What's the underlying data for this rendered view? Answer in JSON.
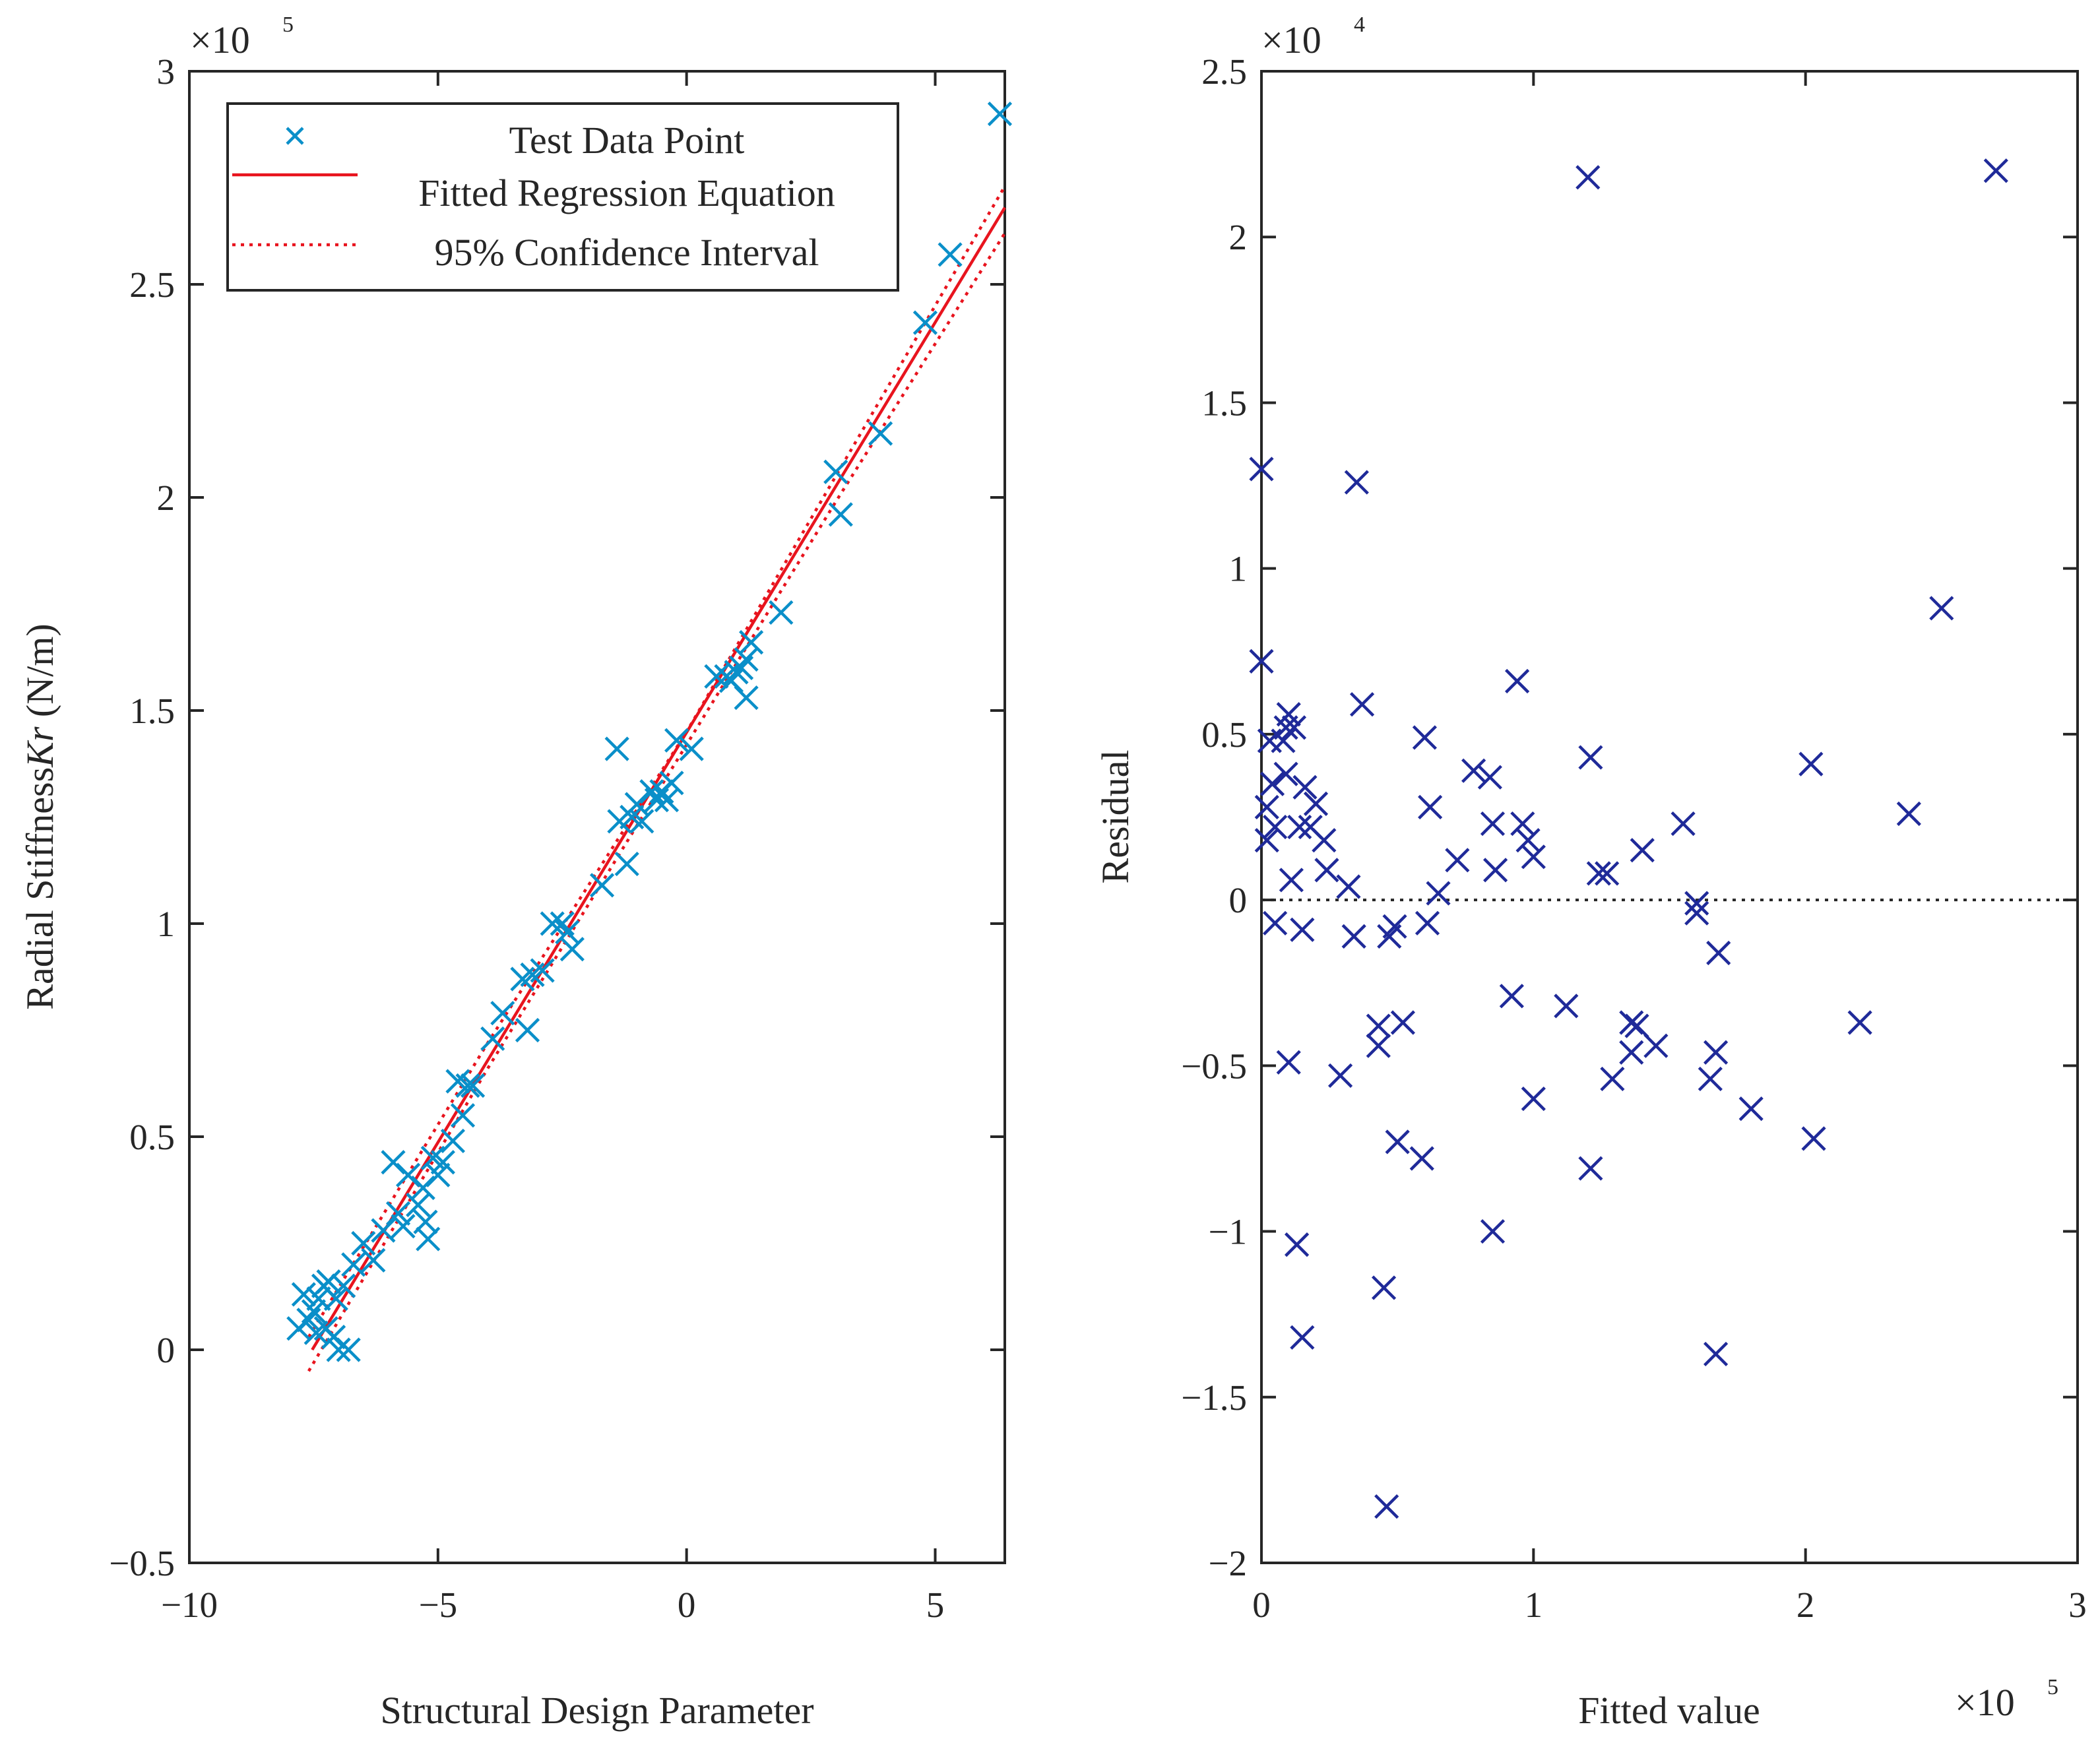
{
  "chart_data": [
    {
      "type": "scatter",
      "title": "",
      "xlabel": "Structural Design Parameter",
      "ylabel": "Radial Stiffness",
      "ylabel_italic": "Kr",
      "ylabel_unit": " (N/m)",
      "xlim": [
        -10,
        6.4
      ],
      "ylim": [
        -0.5,
        3
      ],
      "xticks": [
        -10,
        -5,
        0,
        5
      ],
      "xtick_labels": [
        "−10",
        "−5",
        "0",
        "5"
      ],
      "yticks": [
        -0.5,
        0,
        0.5,
        1,
        1.5,
        2,
        2.5,
        3
      ],
      "ytick_labels": [
        "−0.5",
        "0",
        "0.5",
        "1",
        "1.5",
        "2",
        "2.5",
        "3"
      ],
      "y_exponent": "5",
      "exponent_prefix": "×10",
      "grid": false,
      "legend_position": "top-left",
      "legend": [
        "Test Data Point",
        "Fitted Regression Equation",
        "95% Confidence Interval"
      ],
      "colors": {
        "points": "#0a8fc9",
        "fit": "#e8141e"
      },
      "series": [
        {
          "name": "Test Data Point",
          "kind": "marker-x",
          "points": [
            [
              -7.8,
              0.05
            ],
            [
              -7.7,
              0.13
            ],
            [
              -7.6,
              0.07
            ],
            [
              -7.5,
              0.09
            ],
            [
              -7.45,
              0.04
            ],
            [
              -7.4,
              0.12
            ],
            [
              -7.3,
              0.15
            ],
            [
              -7.25,
              0.05
            ],
            [
              -7.2,
              0.16
            ],
            [
              -7.1,
              0.03
            ],
            [
              -7.05,
              0.12
            ],
            [
              -7.0,
              0.0
            ],
            [
              -6.9,
              0.15
            ],
            [
              -6.8,
              0.0
            ],
            [
              -6.7,
              0.2
            ],
            [
              -6.5,
              0.25
            ],
            [
              -6.3,
              0.21
            ],
            [
              -6.1,
              0.28
            ],
            [
              -5.9,
              0.44
            ],
            [
              -5.8,
              0.32
            ],
            [
              -5.7,
              0.29
            ],
            [
              -5.6,
              0.41
            ],
            [
              -5.4,
              0.34
            ],
            [
              -5.3,
              0.38
            ],
            [
              -5.25,
              0.3
            ],
            [
              -5.2,
              0.26
            ],
            [
              -5.1,
              0.45
            ],
            [
              -5.0,
              0.41
            ],
            [
              -4.9,
              0.44
            ],
            [
              -4.7,
              0.49
            ],
            [
              -4.6,
              0.63
            ],
            [
              -4.5,
              0.55
            ],
            [
              -4.4,
              0.62
            ],
            [
              -4.3,
              0.62
            ],
            [
              -3.9,
              0.73
            ],
            [
              -3.7,
              0.79
            ],
            [
              -3.3,
              0.87
            ],
            [
              -3.2,
              0.75
            ],
            [
              -3.1,
              0.88
            ],
            [
              -2.9,
              0.89
            ],
            [
              -2.7,
              1.0
            ],
            [
              -2.5,
              1.0
            ],
            [
              -2.4,
              0.98
            ],
            [
              -2.3,
              0.94
            ],
            [
              -1.7,
              1.09
            ],
            [
              -1.4,
              1.41
            ],
            [
              -1.35,
              1.24
            ],
            [
              -1.2,
              1.14
            ],
            [
              -1.1,
              1.25
            ],
            [
              -1.0,
              1.28
            ],
            [
              -0.9,
              1.24
            ],
            [
              -0.7,
              1.31
            ],
            [
              -0.6,
              1.29
            ],
            [
              -0.5,
              1.31
            ],
            [
              -0.4,
              1.29
            ],
            [
              -0.3,
              1.33
            ],
            [
              -0.2,
              1.43
            ],
            [
              0.1,
              1.41
            ],
            [
              0.6,
              1.58
            ],
            [
              0.8,
              1.58
            ],
            [
              0.9,
              1.57
            ],
            [
              1.0,
              1.59
            ],
            [
              1.1,
              1.6
            ],
            [
              1.2,
              1.62
            ],
            [
              1.2,
              1.53
            ],
            [
              1.3,
              1.66
            ],
            [
              1.9,
              1.73
            ],
            [
              3.0,
              2.06
            ],
            [
              3.1,
              1.96
            ],
            [
              3.9,
              2.15
            ],
            [
              4.8,
              2.41
            ],
            [
              5.3,
              2.57
            ],
            [
              6.3,
              2.9
            ]
          ]
        },
        {
          "name": "Fitted Regression Equation",
          "kind": "line",
          "points": [
            [
              -7.53,
              0.0
            ],
            [
              6.4,
              2.68
            ]
          ]
        },
        {
          "name": "95% Confidence Interval (upper)",
          "kind": "dotted",
          "points": [
            [
              -7.6,
              0.03
            ],
            [
              -4.0,
              0.72
            ],
            [
              0.0,
              1.45
            ],
            [
              3.0,
              2.05
            ],
            [
              6.4,
              2.73
            ]
          ]
        },
        {
          "name": "95% Confidence Interval (lower)",
          "kind": "dotted",
          "points": [
            [
              -7.6,
              -0.05
            ],
            [
              -4.0,
              0.66
            ],
            [
              0.0,
              1.42
            ],
            [
              3.0,
              1.99
            ],
            [
              6.4,
              2.62
            ]
          ]
        }
      ]
    },
    {
      "type": "scatter",
      "title": "",
      "xlabel": "Fitted value",
      "ylabel": "Residual",
      "xlim": [
        0,
        3
      ],
      "ylim": [
        -2,
        2.5
      ],
      "xticks": [
        0,
        1,
        2,
        3
      ],
      "xtick_labels": [
        "0",
        "1",
        "2",
        "3"
      ],
      "yticks": [
        -2,
        -1.5,
        -1,
        -0.5,
        0,
        0.5,
        1,
        1.5,
        2,
        2.5
      ],
      "ytick_labels": [
        "−2",
        "−1.5",
        "−1",
        "−0.5",
        "0",
        "0.5",
        "1",
        "1.5",
        "2",
        "2.5"
      ],
      "x_exponent": "5",
      "y_exponent": "4",
      "exponent_prefix": "×10",
      "grid": false,
      "reference_line": 0,
      "colors": {
        "points": "#1f2a99"
      },
      "series": [
        {
          "kind": "marker-x",
          "points": [
            [
              0.0,
              1.3
            ],
            [
              0.0,
              0.72
            ],
            [
              0.02,
              0.28
            ],
            [
              0.02,
              0.18
            ],
            [
              0.03,
              0.48
            ],
            [
              0.04,
              0.35
            ],
            [
              0.05,
              0.22
            ],
            [
              0.05,
              -0.07
            ],
            [
              0.08,
              0.48
            ],
            [
              0.09,
              0.52
            ],
            [
              0.09,
              0.38
            ],
            [
              0.1,
              -0.49
            ],
            [
              0.1,
              0.56
            ],
            [
              0.11,
              0.06
            ],
            [
              0.12,
              0.52
            ],
            [
              0.13,
              -1.04
            ],
            [
              0.14,
              0.22
            ],
            [
              0.15,
              -0.09
            ],
            [
              0.15,
              -1.32
            ],
            [
              0.16,
              0.34
            ],
            [
              0.18,
              0.22
            ],
            [
              0.2,
              0.29
            ],
            [
              0.23,
              0.18
            ],
            [
              0.24,
              0.09
            ],
            [
              0.29,
              -0.53
            ],
            [
              0.32,
              0.04
            ],
            [
              0.34,
              -0.11
            ],
            [
              0.35,
              1.26
            ],
            [
              0.37,
              0.59
            ],
            [
              0.43,
              -0.38
            ],
            [
              0.43,
              -0.44
            ],
            [
              0.45,
              -1.17
            ],
            [
              0.46,
              -1.83
            ],
            [
              0.47,
              -0.11
            ],
            [
              0.49,
              -0.08
            ],
            [
              0.5,
              -0.73
            ],
            [
              0.52,
              -0.37
            ],
            [
              0.59,
              -0.78
            ],
            [
              0.6,
              0.49
            ],
            [
              0.61,
              -0.07
            ],
            [
              0.62,
              0.28
            ],
            [
              0.65,
              0.02
            ],
            [
              0.72,
              0.12
            ],
            [
              0.78,
              0.39
            ],
            [
              0.84,
              0.37
            ],
            [
              0.85,
              0.23
            ],
            [
              0.85,
              -1.0
            ],
            [
              0.86,
              0.09
            ],
            [
              0.92,
              -0.29
            ],
            [
              0.94,
              0.66
            ],
            [
              0.96,
              0.23
            ],
            [
              0.98,
              0.18
            ],
            [
              1.0,
              0.13
            ],
            [
              1.0,
              -0.6
            ],
            [
              1.12,
              -0.32
            ],
            [
              1.2,
              2.18
            ],
            [
              1.21,
              0.43
            ],
            [
              1.21,
              -0.81
            ],
            [
              1.24,
              0.08
            ],
            [
              1.27,
              0.08
            ],
            [
              1.29,
              -0.54
            ],
            [
              1.36,
              -0.46
            ],
            [
              1.36,
              -0.37
            ],
            [
              1.38,
              -0.38
            ],
            [
              1.4,
              0.15
            ],
            [
              1.45,
              -0.44
            ],
            [
              1.55,
              0.23
            ],
            [
              1.6,
              -0.01
            ],
            [
              1.6,
              -0.04
            ],
            [
              1.65,
              -0.54
            ],
            [
              1.67,
              -0.46
            ],
            [
              1.67,
              -1.37
            ],
            [
              1.68,
              -0.16
            ],
            [
              1.8,
              -0.63
            ],
            [
              2.02,
              0.41
            ],
            [
              2.03,
              -0.72
            ],
            [
              2.2,
              -0.37
            ],
            [
              2.38,
              0.26
            ],
            [
              2.5,
              0.88
            ],
            [
              2.7,
              2.2
            ]
          ]
        }
      ]
    }
  ]
}
